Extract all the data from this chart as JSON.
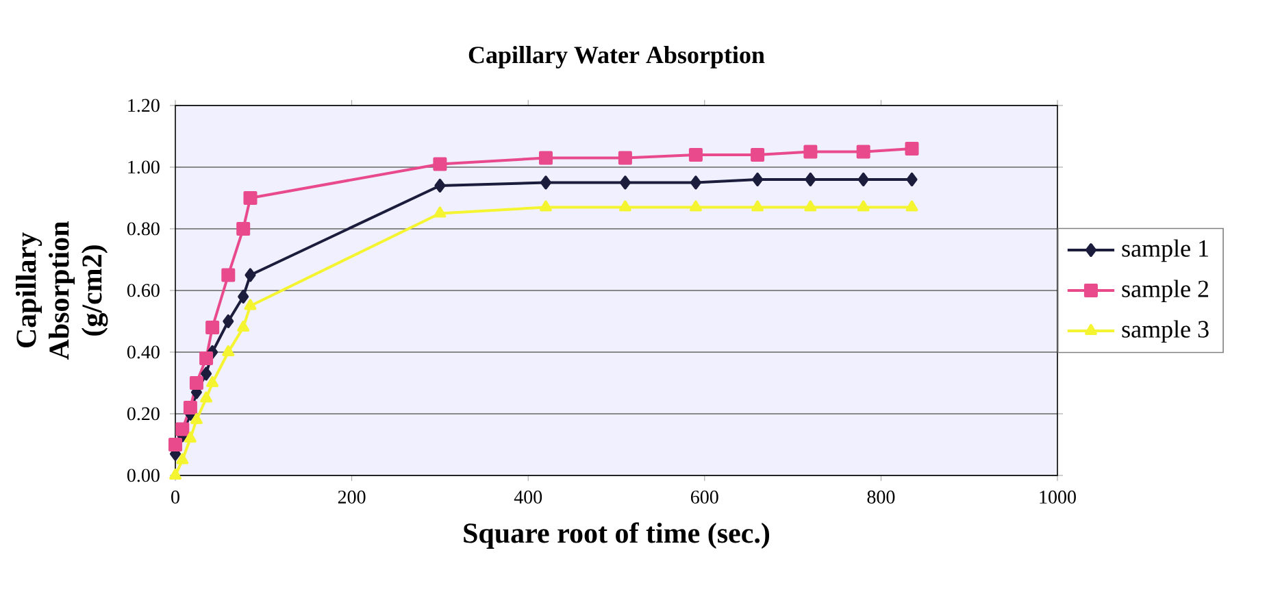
{
  "chart_data": {
    "type": "line",
    "title": "Capillary Water Absorption",
    "xlabel": "Square root of time (sec.)",
    "ylabel": "Capillary Absorption (g/cm2)",
    "x": [
      0,
      8,
      17,
      24,
      35,
      42,
      60,
      77,
      85,
      300,
      420,
      510,
      590,
      660,
      720,
      780,
      835
    ],
    "series": [
      {
        "name": "sample 1",
        "color": "#1c1c3c",
        "marker": "diamond",
        "values": [
          0.07,
          0.13,
          0.2,
          0.27,
          0.33,
          0.4,
          0.5,
          0.58,
          0.65,
          0.94,
          0.95,
          0.95,
          0.95,
          0.96,
          0.96,
          0.96,
          0.96
        ]
      },
      {
        "name": "sample 2",
        "color": "#e84a8c",
        "marker": "square",
        "values": [
          0.1,
          0.15,
          0.22,
          0.3,
          0.38,
          0.48,
          0.65,
          0.8,
          0.9,
          1.01,
          1.03,
          1.03,
          1.04,
          1.04,
          1.05,
          1.05,
          1.06
        ]
      },
      {
        "name": "sample 3",
        "color": "#f4f430",
        "marker": "triangle",
        "values": [
          0.0,
          0.05,
          0.12,
          0.18,
          0.25,
          0.3,
          0.4,
          0.48,
          0.55,
          0.85,
          0.87,
          0.87,
          0.87,
          0.87,
          0.87,
          0.87,
          0.87
        ]
      }
    ],
    "xlim": [
      0,
      1000
    ],
    "xticks": [
      0,
      200,
      400,
      600,
      800,
      1000
    ],
    "ylim": [
      0,
      1.2
    ],
    "yticks": [
      {
        "value": 0,
        "label": "0.00"
      },
      {
        "value": 0.2,
        "label": "0.20"
      },
      {
        "value": 0.4,
        "label": "0.40"
      },
      {
        "value": 0.6,
        "label": "0.60"
      },
      {
        "value": 0.8,
        "label": "0.80"
      },
      {
        "value": 1.0,
        "label": "1.00"
      },
      {
        "value": 1.2,
        "label": "1.20"
      }
    ],
    "grid": "y",
    "legend": "right",
    "line_style": "solid"
  }
}
